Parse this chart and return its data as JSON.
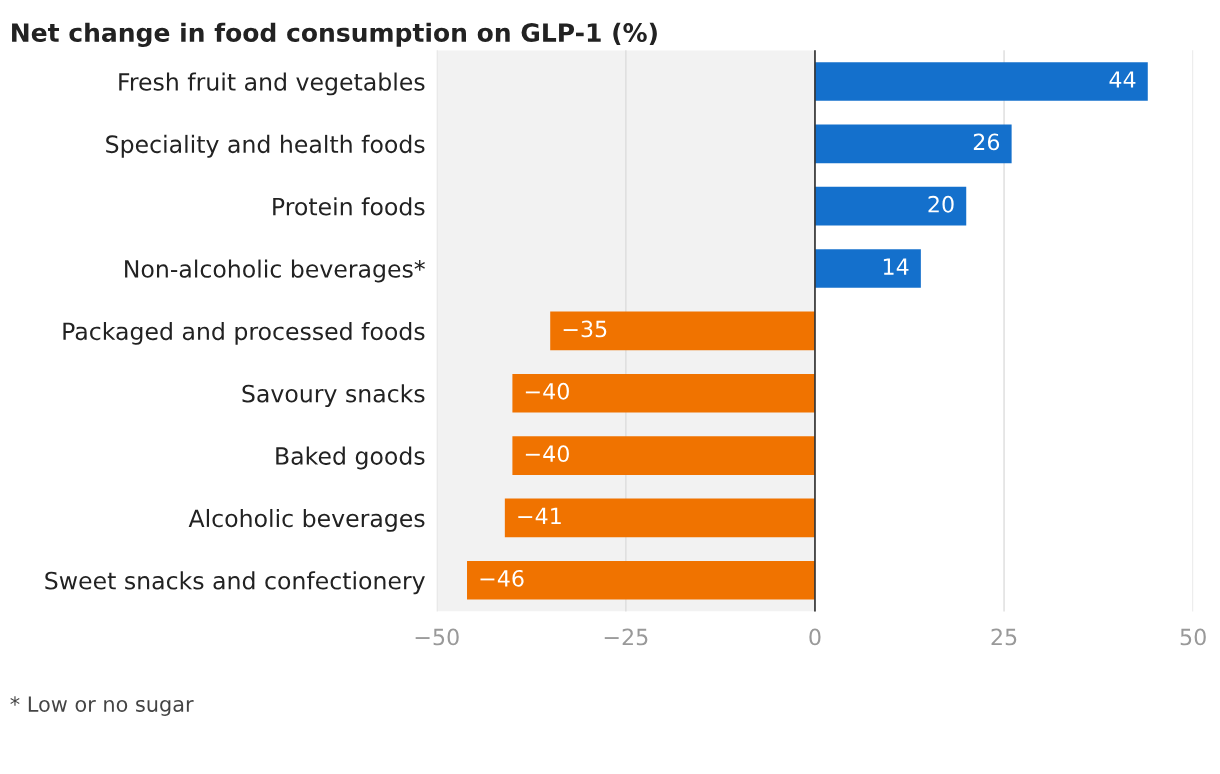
{
  "chart_data": {
    "type": "bar",
    "orientation": "horizontal",
    "title": "Net change in food consumption on GLP-1 (%)",
    "categories": [
      "Fresh fruit and vegetables",
      "Speciality and health foods",
      "Protein foods",
      "Non-alcoholic beverages*",
      "Packaged and processed foods",
      "Savoury snacks",
      "Baked goods",
      "Alcoholic beverages",
      "Sweet snacks and confectionery"
    ],
    "values": [
      44,
      26,
      20,
      14,
      -35,
      -40,
      -40,
      -41,
      -46
    ],
    "colors": [
      "#1470cc",
      "#1470cc",
      "#1470cc",
      "#1470cc",
      "#f07300",
      "#f07300",
      "#f07300",
      "#f07300",
      "#f07300"
    ],
    "data_labels": true,
    "xlim": [
      -50,
      50
    ],
    "xticks": [
      {
        "value": -50,
        "label": "−50"
      },
      {
        "value": -25,
        "label": "−25"
      },
      0,
      25,
      50
    ],
    "grid": "x",
    "bands": [
      {
        "axis": "x",
        "from": -50,
        "to": 0,
        "color": "#f2f2f2"
      }
    ],
    "ref_lines": [
      {
        "axis": "x",
        "value": 0,
        "color": "#333333"
      }
    ],
    "annotations": [
      "* Low or no sugar"
    ]
  }
}
